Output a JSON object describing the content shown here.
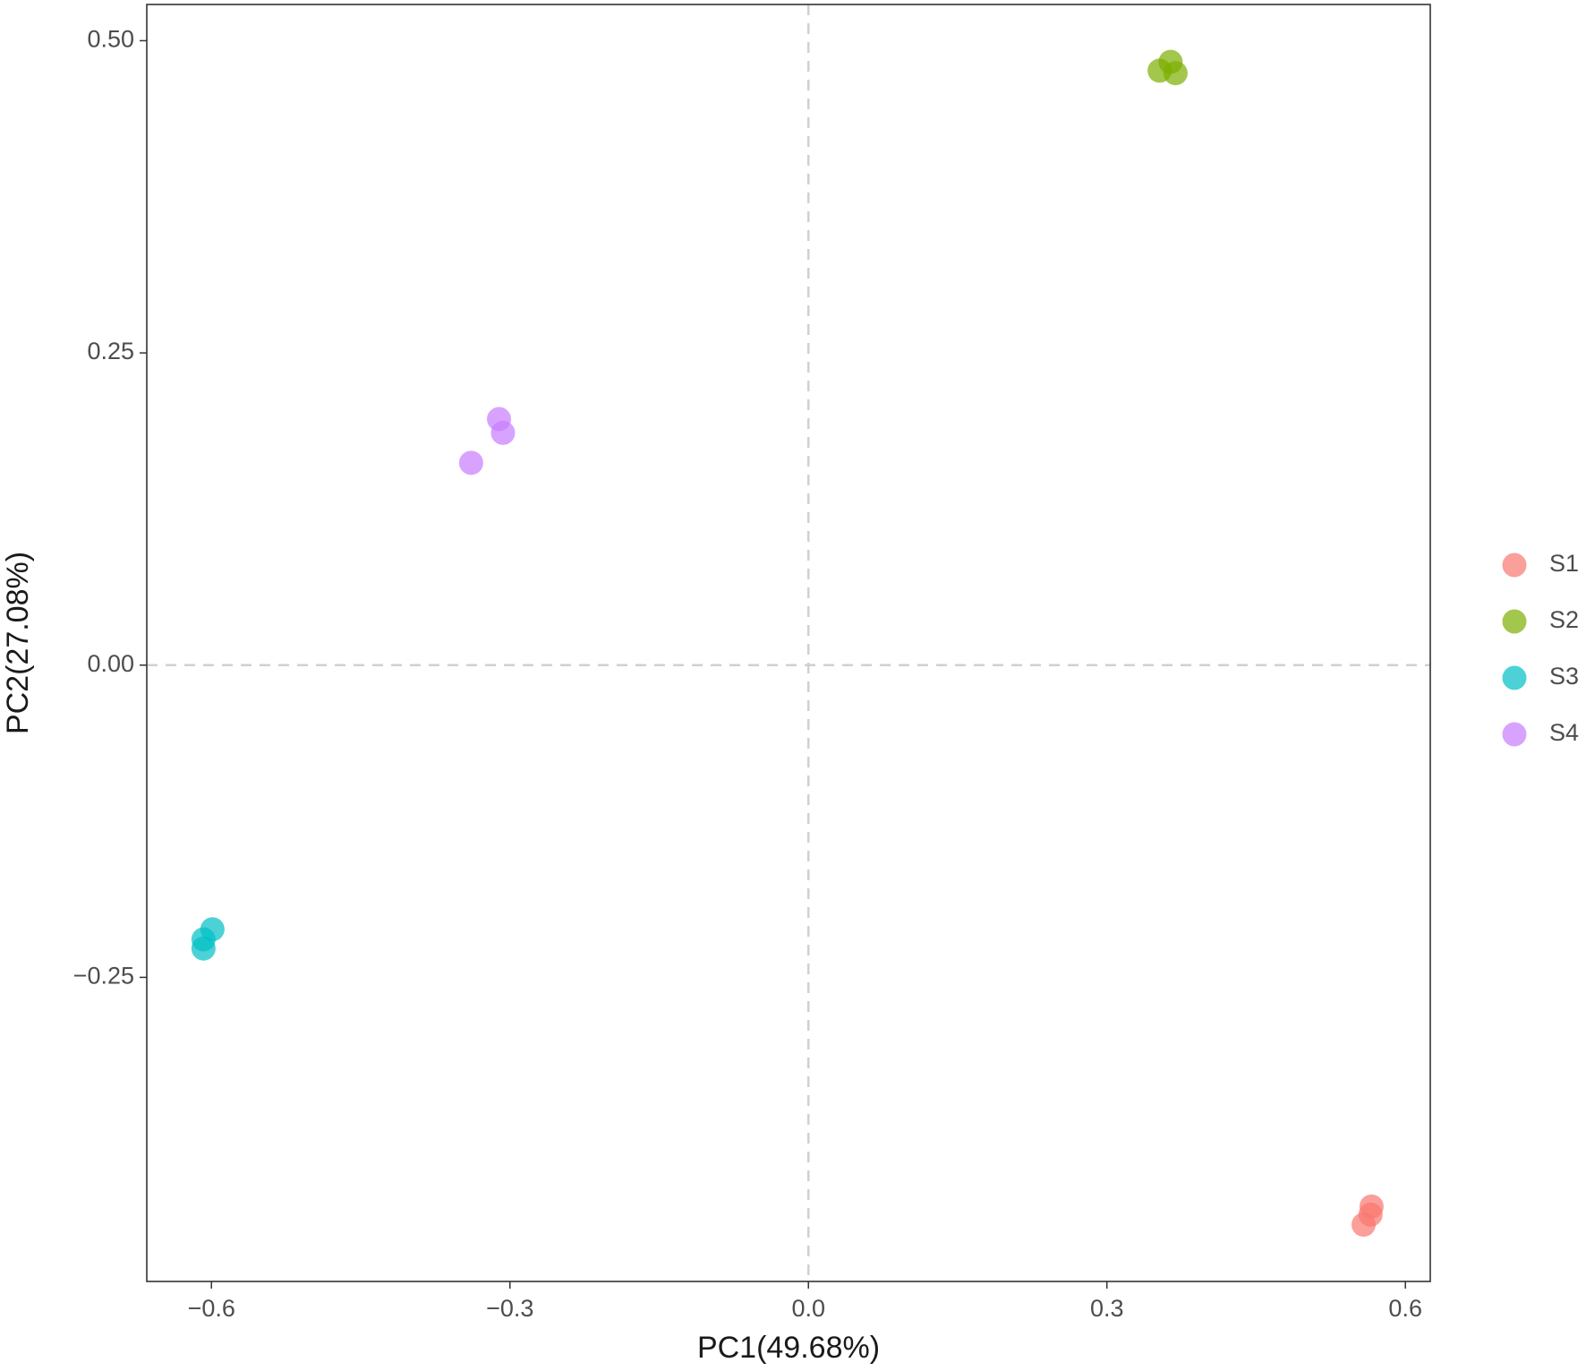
{
  "chart_data": {
    "type": "scatter",
    "xlabel": "PC1(49.68%)",
    "ylabel": "PC2(27.08%)",
    "xlim": [
      -0.665,
      0.625
    ],
    "ylim": [
      -0.4935,
      0.529
    ],
    "xticks": [
      {
        "value": -0.6,
        "label": "−0.6"
      },
      {
        "value": -0.3,
        "label": "−0.3"
      },
      {
        "value": 0,
        "label": "0.0"
      },
      0.3,
      0.6
    ],
    "yticks": [
      {
        "value": -0.25,
        "label": "−0.25"
      },
      {
        "value": 0,
        "label": "0.00"
      },
      {
        "value": 0.25,
        "label": "0.25"
      },
      {
        "value": 0.5,
        "label": "0.50"
      }
    ],
    "hline": 0,
    "vline": 0,
    "grid": false,
    "legend": "right",
    "series": [
      {
        "name": "S1",
        "color": "#F8766D",
        "x": [
          0.566,
          0.565,
          0.558
        ],
        "values": [
          -0.4335,
          -0.44,
          -0.448
        ]
      },
      {
        "name": "S2",
        "color": "#7CAE00",
        "x": [
          0.353,
          0.364,
          0.369
        ],
        "values": [
          0.476,
          0.483,
          0.474
        ]
      },
      {
        "name": "S3",
        "color": "#00BFC4",
        "x": [
          -0.599,
          -0.608,
          -0.608
        ],
        "values": [
          -0.2115,
          -0.2196,
          -0.2269
        ]
      },
      {
        "name": "S4",
        "color": "#C77CFF",
        "x": [
          -0.311,
          -0.307,
          -0.339
        ],
        "values": [
          0.197,
          0.186,
          0.162
        ]
      }
    ]
  }
}
